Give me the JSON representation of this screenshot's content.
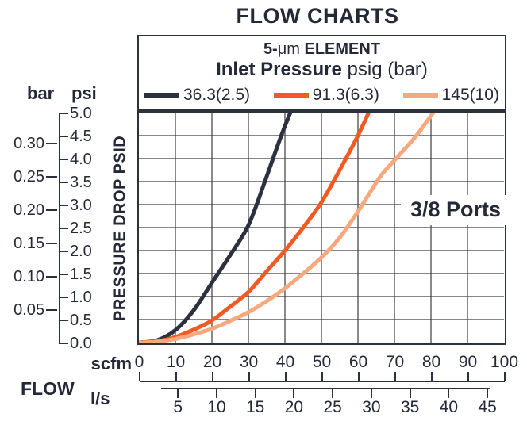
{
  "legend": {
    "element_line": {
      "prefix": "5-",
      "mu": "μm",
      "suffix": " ELEMENT"
    },
    "pressure_line": {
      "bold": "Inlet Pressure",
      "normal": " psig (bar)"
    }
  },
  "chart_data": {
    "type": "line",
    "title": "FLOW CHARTS",
    "legend_title": "5-μm ELEMENT — Inlet Pressure psig (bar)",
    "annotation": "3/8 Ports",
    "grid": true,
    "x_axis": {
      "label": "FLOW",
      "primary_unit": "scfm",
      "primary_ticks": [
        0,
        10,
        20,
        30,
        40,
        50,
        60,
        70,
        80,
        90,
        100
      ],
      "secondary_unit": "l/s",
      "secondary_ticks": [
        5,
        10,
        15,
        20,
        25,
        30,
        35,
        40,
        45
      ],
      "range_scfm": [
        0,
        100
      ]
    },
    "y_axis": {
      "label": "PRESSURE DROP PSID",
      "primary_unit": "psi",
      "primary_ticks": [
        "0.0",
        "0.5",
        "1.0",
        "1.5",
        "2.0",
        "2.5",
        "3.0",
        "3.5",
        "4.0",
        "4.5",
        "5.0"
      ],
      "secondary_unit": "bar",
      "secondary_ticks": [
        "0.05",
        "0.10",
        "0.15",
        "0.20",
        "0.25",
        "0.30"
      ],
      "range_psi": [
        0,
        5
      ]
    },
    "series": [
      {
        "name": "36.3(2.5)",
        "inlet_pressure_psig": 36.3,
        "inlet_pressure_bar": 2.5,
        "color": "#2c3140",
        "points_scfm_psi": [
          [
            0,
            0
          ],
          [
            5,
            0.05
          ],
          [
            10,
            0.27
          ],
          [
            15,
            0.7
          ],
          [
            20,
            1.3
          ],
          [
            25,
            1.9
          ],
          [
            30,
            2.55
          ],
          [
            34.5,
            3.5
          ],
          [
            39,
            4.5
          ],
          [
            42,
            5.1
          ]
        ]
      },
      {
        "name": "91.3(6.3)",
        "inlet_pressure_psig": 91.3,
        "inlet_pressure_bar": 6.3,
        "color": "#f15a22",
        "points_scfm_psi": [
          [
            0,
            0
          ],
          [
            5,
            0.03
          ],
          [
            10,
            0.12
          ],
          [
            15,
            0.28
          ],
          [
            20,
            0.48
          ],
          [
            25,
            0.78
          ],
          [
            30,
            1.1
          ],
          [
            35,
            1.55
          ],
          [
            40,
            2.0
          ],
          [
            45,
            2.5
          ],
          [
            50,
            3.05
          ],
          [
            55,
            3.75
          ],
          [
            60,
            4.5
          ],
          [
            63.5,
            5.1
          ]
        ]
      },
      {
        "name": "145(10)",
        "inlet_pressure_psig": 145,
        "inlet_pressure_bar": 10,
        "color": "#f7a87d",
        "points_scfm_psi": [
          [
            0,
            0
          ],
          [
            5,
            0.02
          ],
          [
            10,
            0.08
          ],
          [
            15,
            0.18
          ],
          [
            20,
            0.3
          ],
          [
            25,
            0.47
          ],
          [
            30,
            0.66
          ],
          [
            35,
            0.9
          ],
          [
            40,
            1.18
          ],
          [
            45,
            1.5
          ],
          [
            50,
            1.85
          ],
          [
            55,
            2.28
          ],
          [
            60,
            2.85
          ],
          [
            64,
            3.35
          ],
          [
            66.5,
            3.65
          ],
          [
            71,
            4.05
          ],
          [
            76,
            4.5
          ],
          [
            81.5,
            5.1
          ]
        ]
      }
    ]
  }
}
